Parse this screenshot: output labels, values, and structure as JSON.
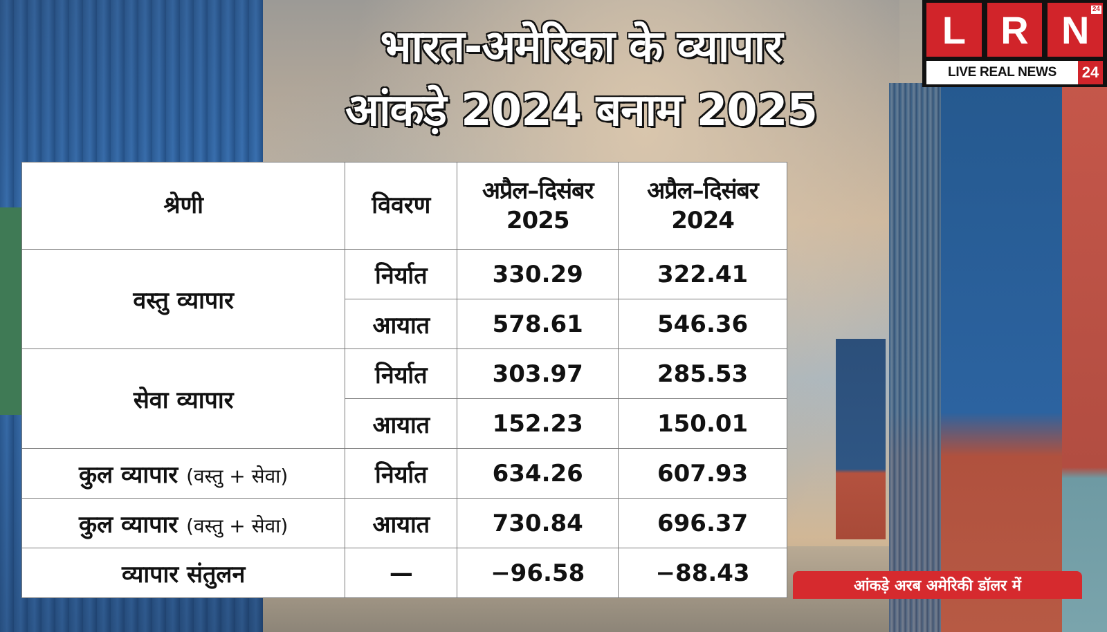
{
  "headline": {
    "line1": "भारत-अमेरिका के व्यापार",
    "line2": "आंकड़े 2024 बनाम 2025"
  },
  "logo": {
    "letters": [
      "L",
      "R",
      "N"
    ],
    "superscript": "24",
    "tagline": "LIVE REAL NEWS",
    "tagline_num": "24",
    "colors": {
      "red": "#d1242a",
      "black": "#111111",
      "white": "#ffffff"
    }
  },
  "table": {
    "headers": {
      "category": "श्रेणी",
      "description": "विवरण",
      "col_2025_period": "अप्रैल–दिसंबर",
      "col_2025_year": "2025",
      "col_2024_period": "अप्रैल–दिसंबर",
      "col_2024_year": "2024"
    },
    "groups": [
      {
        "category": "वस्तु व्यापार",
        "rows": [
          {
            "description": "निर्यात",
            "v2025": "330.29",
            "v2024": "322.41"
          },
          {
            "description": "आयात",
            "v2025": "578.61",
            "v2024": "546.36"
          }
        ]
      },
      {
        "category": "सेवा व्यापार",
        "rows": [
          {
            "description": "निर्यात",
            "v2025": "303.97",
            "v2024": "285.53"
          },
          {
            "description": "आयात",
            "v2025": "152.23",
            "v2024": "150.01"
          }
        ]
      }
    ],
    "total_rows": [
      {
        "category": "कुल व्यापार",
        "category_note": "(वस्तु + सेवा)",
        "description": "निर्यात",
        "v2025": "634.26",
        "v2024": "607.93"
      },
      {
        "category": "कुल व्यापार",
        "category_note": "(वस्तु + सेवा)",
        "description": "आयात",
        "v2025": "730.84",
        "v2024": "696.37"
      }
    ],
    "balance_row": {
      "category": "व्यापार संतुलन",
      "description": "—",
      "v2025": "−96.58",
      "v2024": "−88.43"
    }
  },
  "footnote": {
    "text": "आंकड़े अरब अमेरिकी डॉलर में",
    "color": "#d62a2e"
  }
}
